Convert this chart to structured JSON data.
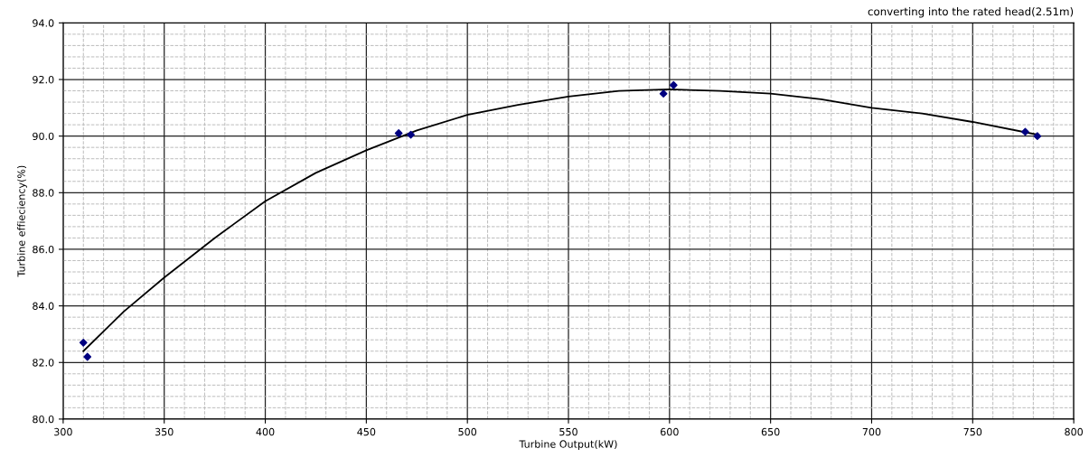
{
  "chart_data": {
    "type": "scatter",
    "title": "converting into the rated head(2.51m)",
    "xlabel": "Turbine Output(kW)",
    "ylabel": "Turbine effieciency(%)",
    "xlim": [
      300,
      800
    ],
    "xticks": [
      300,
      350,
      400,
      450,
      500,
      550,
      600,
      650,
      700,
      750,
      800
    ],
    "ylim": [
      80,
      94
    ],
    "yticks": [
      {
        "value": 80,
        "label": "80.0"
      },
      {
        "value": 82,
        "label": "82.0"
      },
      {
        "value": 84,
        "label": "84.0"
      },
      {
        "value": 86,
        "label": "86.0"
      },
      {
        "value": 88,
        "label": "88.0"
      },
      {
        "value": 90,
        "label": "90.0"
      },
      {
        "value": 92,
        "label": "92.0"
      },
      {
        "value": 94,
        "label": "94.0"
      }
    ],
    "grid": true,
    "series": [
      {
        "marker": "diamond",
        "color": "#000080",
        "x": [
          310,
          312,
          466,
          472,
          597,
          602,
          776,
          782
        ],
        "values": [
          82.7,
          82.2,
          90.1,
          90.05,
          91.5,
          91.8,
          90.15,
          90.0
        ]
      },
      {
        "type": "line",
        "color": "#000000",
        "x": [
          310,
          330,
          350,
          375,
          400,
          425,
          450,
          475,
          500,
          525,
          550,
          575,
          600,
          625,
          650,
          675,
          700,
          725,
          750,
          782
        ],
        "values": [
          82.4,
          83.8,
          85.0,
          86.4,
          87.7,
          88.7,
          89.5,
          90.2,
          90.75,
          91.1,
          91.4,
          91.6,
          91.65,
          91.6,
          91.5,
          91.3,
          91.0,
          90.8,
          90.5,
          90.05
        ]
      }
    ]
  }
}
